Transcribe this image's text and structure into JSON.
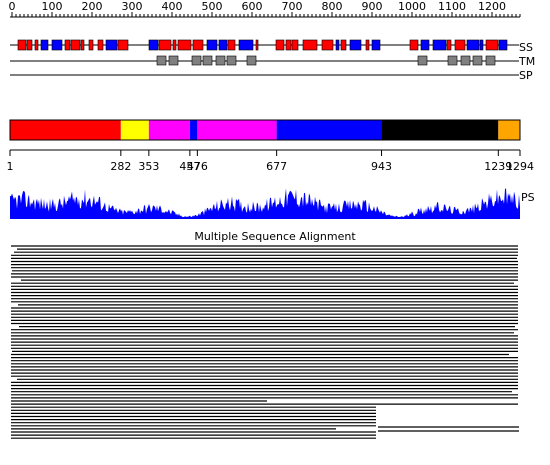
{
  "ruler": {
    "ticks": [
      "0",
      "100",
      "200",
      "300",
      "400",
      "500",
      "600",
      "700",
      "800",
      "900",
      "1000",
      "1100",
      "1200"
    ]
  },
  "tracks": {
    "secondary_structure": "SS",
    "transmembrane": "TM",
    "signal_peptide": "SP",
    "prediction": "PS"
  },
  "domains": {
    "boundaries": [
      "1",
      "282",
      "353",
      "457",
      "476",
      "677",
      "943",
      "1239",
      "1294"
    ],
    "segments": [
      {
        "start": 1,
        "end": 282,
        "color": "#ff0000"
      },
      {
        "start": 282,
        "end": 353,
        "color": "#ffff00"
      },
      {
        "start": 353,
        "end": 457,
        "color": "#ff00ff"
      },
      {
        "start": 457,
        "end": 476,
        "color": "#0000ff"
      },
      {
        "start": 476,
        "end": 677,
        "color": "#ff00ff"
      },
      {
        "start": 677,
        "end": 943,
        "color": "#0000ff"
      },
      {
        "start": 943,
        "end": 1239,
        "color": "#000000"
      },
      {
        "start": 1239,
        "end": 1294,
        "color": "#ffa500"
      }
    ]
  },
  "alignment": {
    "title": "Multiple Sequence Alignment"
  },
  "colors": {
    "helix": "#ff0000",
    "strand": "#0000ff",
    "tm": "#808080",
    "profile": "#0000ff",
    "alignment": "#000000"
  }
}
